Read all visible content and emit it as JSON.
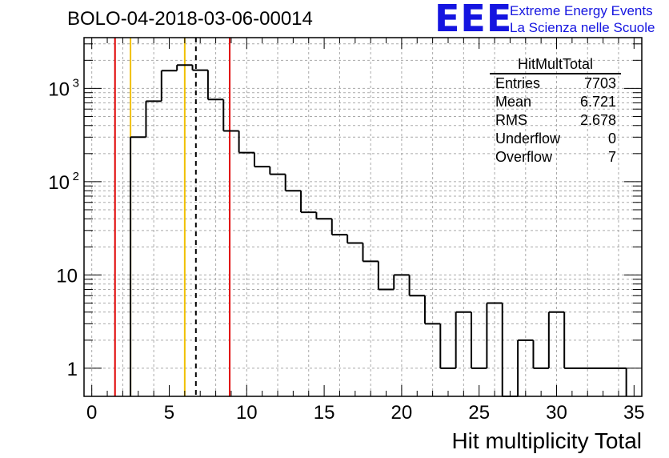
{
  "header": {
    "title": "BOLO-04-2018-03-06-00014",
    "logo": "EEE",
    "logo_line1": "Extreme Energy Events",
    "logo_line2": "La Scienza nelle Scuole"
  },
  "stats_box": {
    "title": "HitMultTotal",
    "rows": [
      {
        "label": "Entries",
        "value": "7703"
      },
      {
        "label": "Mean",
        "value": "6.721"
      },
      {
        "label": "RMS",
        "value": "2.678"
      },
      {
        "label": "Underflow",
        "value": "0"
      },
      {
        "label": "Overflow",
        "value": "7"
      }
    ]
  },
  "colors": {
    "histogram": "#000000",
    "red_lines": "#e00000",
    "yellow_lines": "#f0c000",
    "mean_line": "#000000",
    "grid": "#aaaaaa",
    "logo": "#1515e0"
  },
  "chart_data": {
    "type": "histogram",
    "title": "BOLO-04-2018-03-06-00014",
    "xlabel": "Hit multiplicity Total",
    "ylabel": "",
    "xlim": [
      0,
      35
    ],
    "ylim": [
      0.5,
      3500
    ],
    "log_y": true,
    "grid": true,
    "bin_width": 1,
    "bin_edges_start": 2.5,
    "bins": [
      {
        "x0": 2.5,
        "x1": 3.5,
        "y": 300
      },
      {
        "x0": 3.5,
        "x1": 4.5,
        "y": 730
      },
      {
        "x0": 4.5,
        "x1": 5.5,
        "y": 1550
      },
      {
        "x0": 5.5,
        "x1": 6.5,
        "y": 1780
      },
      {
        "x0": 6.5,
        "x1": 7.5,
        "y": 1570
      },
      {
        "x0": 7.5,
        "x1": 8.5,
        "y": 760
      },
      {
        "x0": 8.5,
        "x1": 9.5,
        "y": 350
      },
      {
        "x0": 9.5,
        "x1": 10.5,
        "y": 205
      },
      {
        "x0": 10.5,
        "x1": 11.5,
        "y": 145
      },
      {
        "x0": 11.5,
        "x1": 12.5,
        "y": 120
      },
      {
        "x0": 12.5,
        "x1": 13.5,
        "y": 80
      },
      {
        "x0": 13.5,
        "x1": 14.5,
        "y": 47
      },
      {
        "x0": 14.5,
        "x1": 15.5,
        "y": 40
      },
      {
        "x0": 15.5,
        "x1": 16.5,
        "y": 27
      },
      {
        "x0": 16.5,
        "x1": 17.5,
        "y": 22
      },
      {
        "x0": 17.5,
        "x1": 18.5,
        "y": 14
      },
      {
        "x0": 18.5,
        "x1": 19.5,
        "y": 7
      },
      {
        "x0": 19.5,
        "x1": 20.5,
        "y": 10
      },
      {
        "x0": 20.5,
        "x1": 21.5,
        "y": 6
      },
      {
        "x0": 21.5,
        "x1": 22.5,
        "y": 3
      },
      {
        "x0": 22.5,
        "x1": 23.5,
        "y": 1
      },
      {
        "x0": 23.5,
        "x1": 24.5,
        "y": 4
      },
      {
        "x0": 24.5,
        "x1": 25.5,
        "y": 1
      },
      {
        "x0": 25.5,
        "x1": 26.5,
        "y": 5
      },
      {
        "x0": 26.5,
        "x1": 27.5,
        "y": 0
      },
      {
        "x0": 27.5,
        "x1": 28.5,
        "y": 2
      },
      {
        "x0": 28.5,
        "x1": 29.5,
        "y": 1
      },
      {
        "x0": 29.5,
        "x1": 30.5,
        "y": 4
      },
      {
        "x0": 30.5,
        "x1": 34.5,
        "y": 1
      }
    ],
    "vertical_lines": [
      {
        "x": 1.5,
        "color": "red",
        "style": "solid"
      },
      {
        "x": 2.5,
        "color": "yellow",
        "style": "solid"
      },
      {
        "x": 6.0,
        "color": "yellow",
        "style": "solid"
      },
      {
        "x": 6.721,
        "color": "black",
        "style": "dashed"
      },
      {
        "x": 8.9,
        "color": "red",
        "style": "solid"
      }
    ],
    "x_ticks": [
      0,
      5,
      10,
      15,
      20,
      25,
      30,
      35
    ],
    "y_ticks": [
      {
        "value": 1,
        "label": "1"
      },
      {
        "value": 10,
        "label": "10"
      },
      {
        "value": 100,
        "label": "10",
        "sup": "2"
      },
      {
        "value": 1000,
        "label": "10",
        "sup": "3"
      }
    ]
  }
}
